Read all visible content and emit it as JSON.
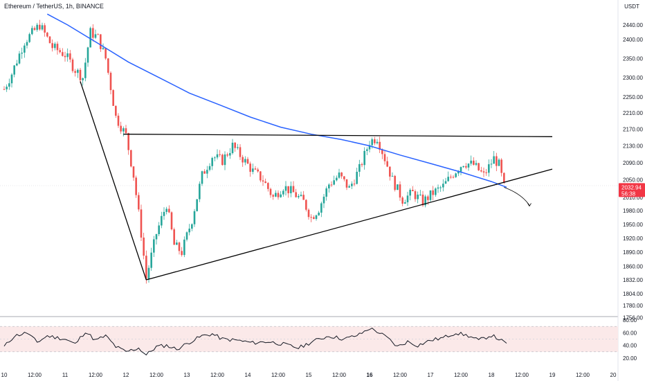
{
  "header": {
    "symbol_title": "Ethereum / TetherUS, 1h, BINANCE",
    "currency": "USDT"
  },
  "price_tag": {
    "price": "2032.94",
    "countdown": "56:38",
    "color": "#f23645"
  },
  "colors": {
    "up": "#26a69a",
    "down": "#ef5350",
    "ma": "#2962ff",
    "rsi": "#131722",
    "rsi_band": "#fbe9e9",
    "lines": "#000000",
    "grid_text": "#131722"
  },
  "chart_data": [
    {
      "type": "candlestick",
      "title": "Ethereum / TetherUS, 1h, BINANCE",
      "y_axis_ticks": [
        "2440.00",
        "2400.00",
        "2350.00",
        "2300.00",
        "2250.00",
        "2210.00",
        "2170.00",
        "2130.00",
        "2090.00",
        "2050.00",
        "2010.00",
        "1980.00",
        "1950.00",
        "1920.00",
        "1890.00",
        "1860.00",
        "1832.00",
        "1804.00",
        "1780.00",
        "1756.00"
      ],
      "x_axis_ticks": [
        "10",
        "12:00",
        "11",
        "12:00",
        "12",
        "12:00",
        "13",
        "12:00",
        "14",
        "12:00",
        "15",
        "12:00",
        "16",
        "12:00",
        "17",
        "12:00",
        "18",
        "12:00",
        "19",
        "12:00",
        "20"
      ],
      "y_scale": "log",
      "current_price": 2032.94,
      "moving_average_points": [
        [
          "10 17:00",
          2470
        ],
        [
          "11 01:00",
          2440
        ],
        [
          "11 13:00",
          2390
        ],
        [
          "12 01:00",
          2340
        ],
        [
          "12 13:00",
          2300
        ],
        [
          "13 01:00",
          2260
        ],
        [
          "13 13:00",
          2230
        ],
        [
          "14 01:00",
          2200
        ],
        [
          "14 13:00",
          2175
        ],
        [
          "15 01:00",
          2158
        ],
        [
          "15 13:00",
          2145
        ],
        [
          "16 00:00",
          2130
        ],
        [
          "16 12:00",
          2108
        ],
        [
          "17 00:00",
          2088
        ],
        [
          "17 12:00",
          2068
        ],
        [
          "18 00:00",
          2046
        ],
        [
          "18 06:00",
          2033
        ]
      ],
      "trendlines": [
        {
          "points": [
            [
              "11 06:00",
              2290
            ],
            [
              "12 08:00",
              1832
            ]
          ]
        },
        {
          "points": [
            [
              "12 08:00",
              1832
            ],
            [
              "19 00:00",
              2075
            ]
          ]
        },
        {
          "points": [
            [
              "11 23:00",
              2158
            ],
            [
              "19 00:00",
              2152
            ]
          ]
        }
      ],
      "projection_arrow": [
        [
          "18 05:00",
          2033
        ],
        [
          "18 12:00",
          2018
        ],
        [
          "18 15:00",
          1992
        ]
      ],
      "price_anchors": [
        [
          "10 00:00",
          2270
        ],
        [
          "10 03:00",
          2310
        ],
        [
          "10 08:00",
          2395
        ],
        [
          "10 14:00",
          2440
        ],
        [
          "10 19:00",
          2380
        ],
        [
          "11 00:00",
          2360
        ],
        [
          "11 04:00",
          2320
        ],
        [
          "11 07:00",
          2300
        ],
        [
          "11 10:00",
          2420
        ],
        [
          "11 13:00",
          2405
        ],
        [
          "11 16:00",
          2350
        ],
        [
          "11 20:00",
          2200
        ],
        [
          "12 00:00",
          2155
        ],
        [
          "12 03:00",
          2060
        ],
        [
          "12 06:00",
          1930
        ],
        [
          "12 08:00",
          1835
        ],
        [
          "12 12:00",
          1930
        ],
        [
          "12 16:00",
          1995
        ],
        [
          "12 19:00",
          1905
        ],
        [
          "12 22:00",
          1890
        ],
        [
          "13 02:00",
          1960
        ],
        [
          "13 06:00",
          2060
        ],
        [
          "13 10:00",
          2105
        ],
        [
          "13 14:00",
          2095
        ],
        [
          "13 18:00",
          2130
        ],
        [
          "13 22:00",
          2100
        ],
        [
          "14 02:00",
          2070
        ],
        [
          "14 06:00",
          2050
        ],
        [
          "14 10:00",
          2010
        ],
        [
          "14 14:00",
          2035
        ],
        [
          "14 18:00",
          2020
        ],
        [
          "14 22:00",
          2000
        ],
        [
          "15 01:00",
          1965
        ],
        [
          "15 04:00",
          1985
        ],
        [
          "15 08:00",
          2040
        ],
        [
          "15 12:00",
          2060
        ],
        [
          "15 16:00",
          2030
        ],
        [
          "15 20:00",
          2075
        ],
        [
          "16 00:00",
          2140
        ],
        [
          "16 03:00",
          2150
        ],
        [
          "16 06:00",
          2100
        ],
        [
          "16 09:00",
          2050
        ],
        [
          "16 13:00",
          2005
        ],
        [
          "16 17:00",
          2020
        ],
        [
          "16 21:00",
          2000
        ],
        [
          "17 01:00",
          2020
        ],
        [
          "17 05:00",
          2035
        ],
        [
          "17 09:00",
          2065
        ],
        [
          "17 13:00",
          2090
        ],
        [
          "17 17:00",
          2085
        ],
        [
          "17 21:00",
          2060
        ],
        [
          "18 01:00",
          2100
        ],
        [
          "18 03:00",
          2085
        ],
        [
          "18 05:00",
          2033
        ]
      ]
    },
    {
      "type": "line",
      "title": "",
      "y_axis_ticks": [
        "80.00",
        "60.00",
        "40.00",
        "20.00"
      ],
      "band": [
        30,
        70
      ],
      "rsi_anchors": [
        [
          "10 00:00",
          38
        ],
        [
          "10 04:00",
          55
        ],
        [
          "10 09:00",
          60
        ],
        [
          "10 13:00",
          45
        ],
        [
          "10 17:00",
          55
        ],
        [
          "11 00:00",
          50
        ],
        [
          "11 04:00",
          42
        ],
        [
          "11 08:00",
          62
        ],
        [
          "11 12:00",
          48
        ],
        [
          "11 16:00",
          55
        ],
        [
          "11 20:00",
          38
        ],
        [
          "12 00:00",
          30
        ],
        [
          "12 05:00",
          36
        ],
        [
          "12 08:00",
          25
        ],
        [
          "12 12:00",
          38
        ],
        [
          "12 16:00",
          40
        ],
        [
          "12 20:00",
          34
        ],
        [
          "13 01:00",
          45
        ],
        [
          "13 06:00",
          55
        ],
        [
          "13 10:00",
          58
        ],
        [
          "13 14:00",
          50
        ],
        [
          "13 20:00",
          48
        ],
        [
          "14 02:00",
          44
        ],
        [
          "14 08:00",
          46
        ],
        [
          "14 14:00",
          42
        ],
        [
          "14 20:00",
          36
        ],
        [
          "15 02:00",
          47
        ],
        [
          "15 08:00",
          55
        ],
        [
          "15 14:00",
          50
        ],
        [
          "15 20:00",
          57
        ],
        [
          "16 00:00",
          67
        ],
        [
          "16 03:00",
          62
        ],
        [
          "16 07:00",
          52
        ],
        [
          "16 11:00",
          38
        ],
        [
          "16 15:00",
          46
        ],
        [
          "16 19:00",
          40
        ],
        [
          "17 00:00",
          48
        ],
        [
          "17 05:00",
          52
        ],
        [
          "17 10:00",
          60
        ],
        [
          "17 15:00",
          55
        ],
        [
          "17 19:00",
          48
        ],
        [
          "18 00:00",
          56
        ],
        [
          "18 03:00",
          50
        ],
        [
          "18 06:00",
          42
        ]
      ]
    }
  ]
}
